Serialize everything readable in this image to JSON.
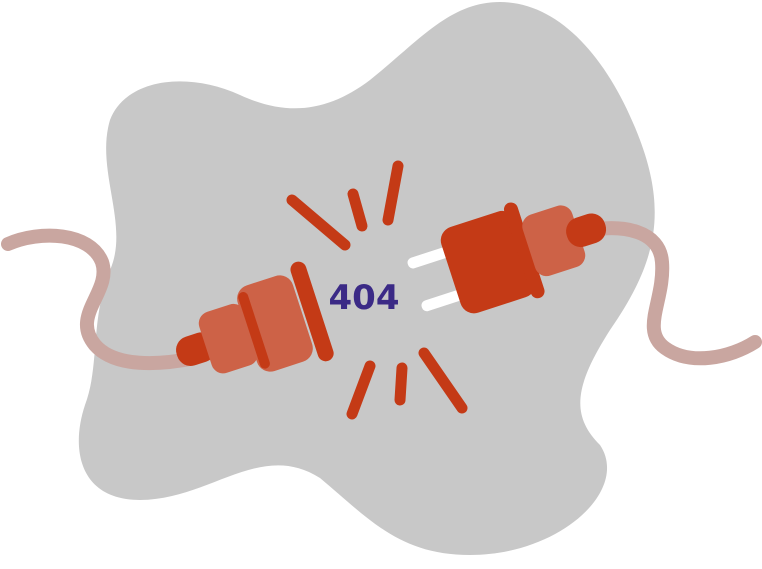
{
  "error": {
    "code": "404"
  },
  "colors": {
    "blob": "#c8c8c8",
    "plug": "#c43a16",
    "plug_light": "#cd6247",
    "cable": "#c9a6a0",
    "pins": "#ffffff",
    "spark": "#c43a16",
    "code_text": "#3b2a86"
  },
  "icons": {
    "left_plug": "power-plug-icon",
    "right_plug": "power-plug-icon",
    "spark": "spark-icon"
  }
}
